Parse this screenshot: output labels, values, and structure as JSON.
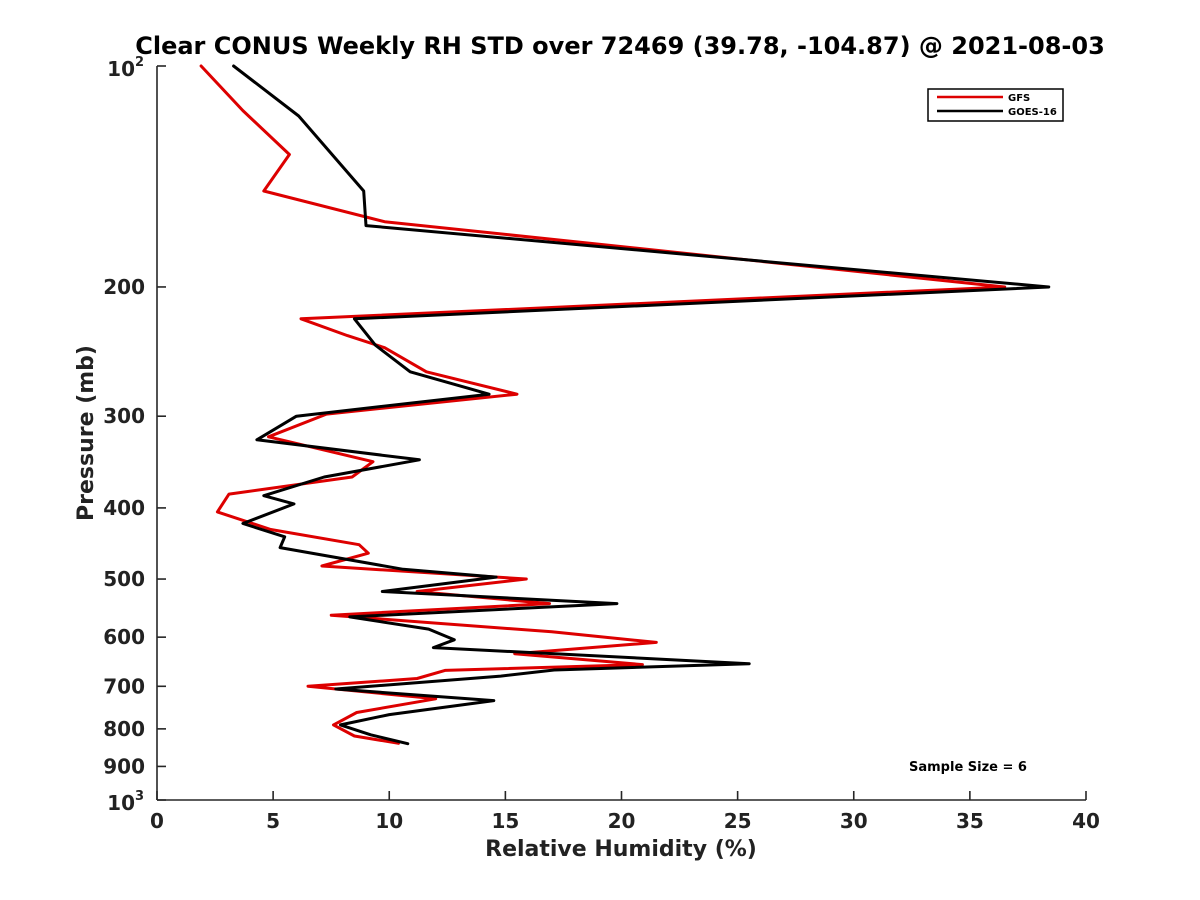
{
  "chart_data": {
    "type": "line",
    "title": "Clear CONUS Weekly RH STD over 72469 (39.78, -104.87) @ 2021-08-03",
    "xlabel": "Relative Humidity (%)",
    "ylabel": "Pressure (mb)",
    "xlim": [
      0,
      40
    ],
    "ylim": [
      100,
      1000
    ],
    "y_scale": "log",
    "y_reversed": true,
    "x_ticks": [
      "0",
      "5",
      "10",
      "15",
      "20",
      "25",
      "30",
      "35",
      "40"
    ],
    "y_ticks": [
      {
        "value": 100,
        "base": "10",
        "exp": "2"
      },
      {
        "value": 200,
        "label": "200"
      },
      {
        "value": 300,
        "label": "300"
      },
      {
        "value": 400,
        "label": "400"
      },
      {
        "value": 500,
        "label": "500"
      },
      {
        "value": 600,
        "label": "600"
      },
      {
        "value": 700,
        "label": "700"
      },
      {
        "value": 800,
        "label": "800"
      },
      {
        "value": 900,
        "label": "900"
      },
      {
        "value": 1000,
        "base": "10",
        "exp": "3"
      }
    ],
    "grid": false,
    "legend_position": "top-right",
    "annotation": "Sample Size = 6",
    "series": [
      {
        "name": "GFS",
        "color": "#dd0000",
        "points": [
          [
            1.9,
            100
          ],
          [
            3.7,
            115
          ],
          [
            5.7,
            132
          ],
          [
            4.6,
            148
          ],
          [
            9.8,
            163
          ],
          [
            36.5,
            200
          ],
          [
            6.2,
            221
          ],
          [
            8.2,
            233
          ],
          [
            9.8,
            242
          ],
          [
            11.6,
            261
          ],
          [
            15.5,
            280
          ],
          [
            7.3,
            298
          ],
          [
            4.8,
            320
          ],
          [
            9.3,
            346
          ],
          [
            8.4,
            363
          ],
          [
            3.1,
            383
          ],
          [
            2.6,
            405
          ],
          [
            4.9,
            428
          ],
          [
            8.7,
            449
          ],
          [
            9.1,
            461
          ],
          [
            7.1,
            480
          ],
          [
            15.9,
            500
          ],
          [
            11.2,
            520
          ],
          [
            16.9,
            540
          ],
          [
            7.5,
            560
          ],
          [
            17.0,
            590
          ],
          [
            21.5,
            610
          ],
          [
            15.4,
            632
          ],
          [
            20.9,
            654
          ],
          [
            12.4,
            666
          ],
          [
            11.2,
            683
          ],
          [
            6.5,
            700
          ],
          [
            12.0,
            728
          ],
          [
            8.6,
            760
          ],
          [
            7.6,
            790
          ],
          [
            8.5,
            818
          ],
          [
            10.4,
            837
          ]
        ]
      },
      {
        "name": "GOES-16",
        "color": "#000000",
        "points": [
          [
            3.3,
            100
          ],
          [
            6.1,
            117
          ],
          [
            8.9,
            148
          ],
          [
            9.0,
            165
          ],
          [
            38.4,
            200
          ],
          [
            8.5,
            221
          ],
          [
            9.4,
            240
          ],
          [
            10.9,
            261
          ],
          [
            14.3,
            280
          ],
          [
            6.0,
            300
          ],
          [
            4.3,
            323
          ],
          [
            11.3,
            344
          ],
          [
            7.2,
            363
          ],
          [
            4.6,
            385
          ],
          [
            5.9,
            395
          ],
          [
            3.7,
            420
          ],
          [
            5.5,
            438
          ],
          [
            5.3,
            453
          ],
          [
            10.6,
            485
          ],
          [
            14.6,
            497
          ],
          [
            9.7,
            520
          ],
          [
            19.8,
            540
          ],
          [
            8.3,
            563
          ],
          [
            11.7,
            585
          ],
          [
            12.8,
            605
          ],
          [
            11.9,
            620
          ],
          [
            25.5,
            652
          ],
          [
            17.1,
            665
          ],
          [
            14.8,
            678
          ],
          [
            7.7,
            706
          ],
          [
            14.5,
            732
          ],
          [
            10.0,
            765
          ],
          [
            7.9,
            790
          ],
          [
            9.2,
            815
          ],
          [
            10.8,
            838
          ]
        ]
      }
    ]
  }
}
